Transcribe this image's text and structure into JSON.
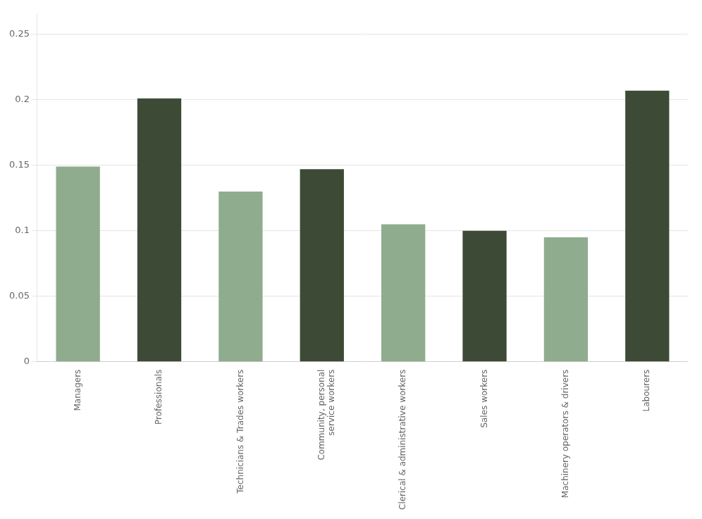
{
  "chart_data": {
    "type": "bar",
    "categories": [
      "Managers",
      "Professionals",
      "Technicians & Trades workers",
      "Community, personal\nservice workers",
      "Clerical & administrative workers",
      "Sales workers",
      "Machinery operators & drivers",
      "Labourers"
    ],
    "values": [
      0.149,
      0.201,
      0.13,
      0.147,
      0.105,
      0.1,
      0.095,
      0.207
    ],
    "colors": [
      "#8fac8f",
      "#3d4a35",
      "#8fac8f",
      "#3d4a35",
      "#8fac8f",
      "#3d4a35",
      "#8fac8f",
      "#3d4a35"
    ],
    "ylim": [
      0,
      0.265
    ],
    "yticks": [
      0,
      0.05,
      0.1,
      0.15,
      0.2,
      0.25
    ],
    "grid": true
  }
}
